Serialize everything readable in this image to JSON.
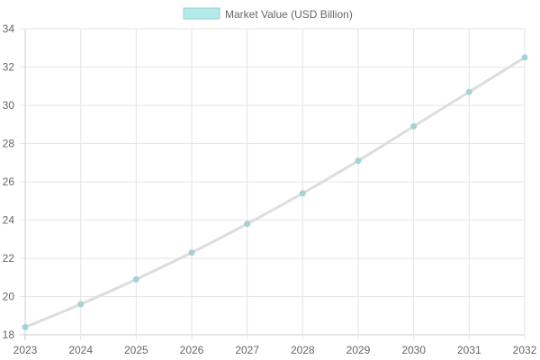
{
  "chart_data": {
    "type": "line",
    "x": [
      "2023",
      "2024",
      "2025",
      "2026",
      "2027",
      "2028",
      "2029",
      "2030",
      "2031",
      "2032"
    ],
    "series": [
      {
        "name": "Market Value (USD Billion)",
        "values": [
          18.4,
          19.6,
          20.9,
          22.3,
          23.8,
          25.4,
          27.1,
          28.9,
          30.7,
          32.5
        ],
        "line_color": "#dddddd",
        "point_color": "#a3d3d6",
        "legend_fill": "#b3ebe8",
        "legend_stroke": "#9ccfd2"
      }
    ],
    "ylim": [
      18,
      34
    ],
    "yticks": [
      18,
      20,
      22,
      24,
      26,
      28,
      30,
      32,
      34
    ],
    "grid": true,
    "legend_position": "top-center",
    "grid_color": "#e5e5e5",
    "axis_color": "#cfcfcf"
  }
}
